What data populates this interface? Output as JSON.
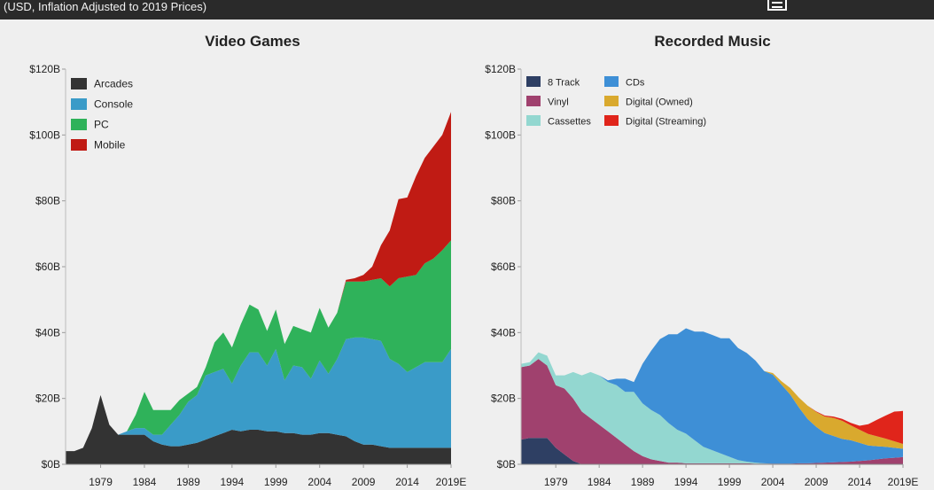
{
  "header": {
    "subtitle": "(USD, Inflation Adjusted to 2019 Prices)"
  },
  "chart_data": [
    {
      "type": "area",
      "stacked": true,
      "title": "Video Games",
      "xlabel": "",
      "ylabel": "",
      "x": [
        1975,
        1976,
        1977,
        1978,
        1979,
        1980,
        1981,
        1982,
        1983,
        1984,
        1985,
        1986,
        1987,
        1988,
        1989,
        1990,
        1991,
        1992,
        1993,
        1994,
        1995,
        1996,
        1997,
        1998,
        1999,
        2000,
        2001,
        2002,
        2003,
        2004,
        2005,
        2006,
        2007,
        2008,
        2009,
        2010,
        2011,
        2012,
        2013,
        2014,
        2015,
        2016,
        2017,
        2018,
        2019
      ],
      "x_tick_labels": [
        "1979",
        "1984",
        "1989",
        "1994",
        "1999",
        "2004",
        "2009",
        "2014",
        "2019E"
      ],
      "x_tick_values": [
        1979,
        1984,
        1989,
        1994,
        1999,
        2004,
        2009,
        2014,
        2019
      ],
      "xlim": [
        1975,
        2019
      ],
      "y_tick_labels": [
        "$0B",
        "$20B",
        "$40B",
        "$60B",
        "$80B",
        "$100B",
        "$120B"
      ],
      "ylim": [
        0,
        120
      ],
      "legend_position": "top-left",
      "series": [
        {
          "name": "Arcades",
          "color": "#333333",
          "values": [
            4,
            4,
            5,
            11,
            21,
            12,
            9,
            9,
            9,
            9,
            7,
            6,
            5.5,
            5.5,
            6,
            6.5,
            7.5,
            8.5,
            9.5,
            10.5,
            10,
            10.5,
            10.5,
            10,
            10,
            9.5,
            9.5,
            9,
            9,
            9.5,
            9.5,
            9,
            8.5,
            7,
            6,
            6,
            5.5,
            5,
            5,
            5,
            5,
            5,
            5,
            5,
            5
          ]
        },
        {
          "name": "Console",
          "color": "#3a9bc8",
          "values": [
            0,
            0,
            0,
            0,
            0,
            0,
            0,
            1,
            2,
            2,
            2,
            3,
            6.5,
            9.5,
            13,
            14.5,
            19.5,
            19.5,
            19.5,
            14,
            20,
            23.5,
            23.5,
            20,
            25,
            16,
            20.5,
            20.5,
            17,
            22,
            18,
            23,
            29.5,
            31.5,
            32.5,
            32,
            32,
            27,
            25.5,
            23,
            24.5,
            26,
            26,
            26,
            30
          ]
        },
        {
          "name": "PC",
          "color": "#2fb25a",
          "values": [
            0,
            0,
            0,
            0,
            0,
            0,
            0,
            0,
            4,
            11,
            7.5,
            7.5,
            4.5,
            4.5,
            2.5,
            2.5,
            2.5,
            9,
            11,
            11,
            12.5,
            14.5,
            13,
            10.5,
            12,
            11,
            12,
            11.5,
            14,
            16,
            14,
            14,
            17.5,
            17,
            17,
            18,
            19,
            22,
            26,
            29,
            28,
            30,
            31.5,
            34,
            33
          ]
        },
        {
          "name": "Mobile",
          "color": "#c01b14",
          "values": [
            0,
            0,
            0,
            0,
            0,
            0,
            0,
            0,
            0,
            0,
            0,
            0,
            0,
            0,
            0,
            0,
            0,
            0,
            0,
            0,
            0,
            0,
            0,
            0,
            0,
            0,
            0,
            0,
            0,
            0,
            0,
            0,
            0.5,
            1,
            2,
            4,
            10,
            17,
            24,
            24,
            30,
            32,
            34,
            35,
            39
          ]
        }
      ]
    },
    {
      "type": "area",
      "stacked": true,
      "title": "Recorded Music",
      "xlabel": "",
      "ylabel": "",
      "x": [
        1975,
        1976,
        1977,
        1978,
        1979,
        1980,
        1981,
        1982,
        1983,
        1984,
        1985,
        1986,
        1987,
        1988,
        1989,
        1990,
        1991,
        1992,
        1993,
        1994,
        1995,
        1996,
        1997,
        1998,
        1999,
        2000,
        2001,
        2002,
        2003,
        2004,
        2005,
        2006,
        2007,
        2008,
        2009,
        2010,
        2011,
        2012,
        2013,
        2014,
        2015,
        2016,
        2017,
        2018,
        2019
      ],
      "x_tick_labels": [
        "1979",
        "1984",
        "1989",
        "1994",
        "1999",
        "2004",
        "2009",
        "2014",
        "2019E"
      ],
      "x_tick_values": [
        1979,
        1984,
        1989,
        1994,
        1999,
        2004,
        2009,
        2014,
        2019
      ],
      "xlim": [
        1975,
        2019
      ],
      "y_tick_labels": [
        "$0B",
        "$20B",
        "$40B",
        "$60B",
        "$80B",
        "$100B",
        "$120B"
      ],
      "ylim": [
        0,
        120
      ],
      "legend_position": "top-left",
      "series": [
        {
          "name": "8 Track",
          "color": "#2e3f63",
          "values": [
            7.5,
            8,
            8,
            8,
            5,
            3,
            1,
            0,
            0,
            0,
            0,
            0,
            0,
            0,
            0,
            0,
            0,
            0,
            0,
            0,
            0,
            0,
            0,
            0,
            0,
            0,
            0,
            0,
            0,
            0,
            0,
            0,
            0,
            0,
            0,
            0,
            0,
            0,
            0,
            0,
            0,
            0,
            0,
            0,
            0
          ]
        },
        {
          "name": "Vinyl",
          "color": "#a0416e",
          "values": [
            22,
            22,
            24,
            22,
            19,
            20,
            19,
            16,
            14,
            12,
            10,
            8,
            6,
            4,
            2.5,
            1.5,
            1,
            0.5,
            0.5,
            0.3,
            0.3,
            0.3,
            0.3,
            0.3,
            0.3,
            0.3,
            0.3,
            0.2,
            0.2,
            0.2,
            0.2,
            0.2,
            0.3,
            0.3,
            0.4,
            0.5,
            0.6,
            0.7,
            0.8,
            1,
            1.2,
            1.5,
            1.8,
            2,
            2.2
          ]
        },
        {
          "name": "Cassettes",
          "color": "#93d7d0",
          "values": [
            1,
            1,
            2,
            3,
            3,
            4,
            8,
            11,
            14,
            15,
            15,
            16,
            16,
            18,
            16,
            15,
            14,
            12,
            10,
            9,
            7,
            5,
            4,
            3,
            2,
            1,
            0.5,
            0.3,
            0.1,
            0,
            0,
            0,
            0,
            0,
            0,
            0,
            0,
            0,
            0,
            0,
            0,
            0,
            0,
            0,
            0
          ]
        },
        {
          "name": "CDs",
          "color": "#3e8fd6",
          "values": [
            0,
            0,
            0,
            0,
            0,
            0,
            0,
            0,
            0,
            0,
            0.5,
            2,
            4,
            3,
            12,
            18,
            23,
            27,
            29,
            32,
            33,
            35,
            35,
            35,
            36,
            34,
            33,
            31,
            28,
            27,
            24,
            21,
            17,
            13.5,
            11,
            9,
            8,
            7,
            6.5,
            5.5,
            4.5,
            4,
            3.5,
            3,
            2.5
          ]
        },
        {
          "name": "Digital (Owned)",
          "color": "#d9a92e",
          "values": [
            0,
            0,
            0,
            0,
            0,
            0,
            0,
            0,
            0,
            0,
            0,
            0,
            0,
            0,
            0,
            0,
            0,
            0,
            0,
            0,
            0,
            0,
            0,
            0,
            0,
            0,
            0,
            0,
            0,
            0.5,
            1,
            2,
            3,
            4,
            4.5,
            5,
            5.5,
            5.5,
            4.5,
            4,
            3.5,
            3,
            2.5,
            2,
            1.5
          ]
        },
        {
          "name": "Digital (Streaming)",
          "color": "#e0251b",
          "values": [
            0,
            0,
            0,
            0,
            0,
            0,
            0,
            0,
            0,
            0,
            0,
            0,
            0,
            0,
            0,
            0,
            0,
            0,
            0,
            0,
            0,
            0,
            0,
            0,
            0,
            0,
            0,
            0,
            0,
            0,
            0,
            0,
            0,
            0,
            0.2,
            0.3,
            0.4,
            0.6,
            0.8,
            1.2,
            3,
            5,
            7,
            9,
            10
          ]
        }
      ]
    }
  ]
}
